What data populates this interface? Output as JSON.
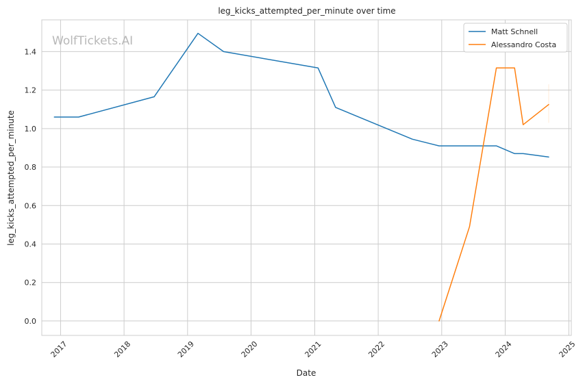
{
  "chart_data": {
    "type": "line",
    "title": "leg_kicks_attempted_per_minute over time",
    "xlabel": "Date",
    "ylabel": "leg_kicks_attempted_per_minute",
    "watermark": "WolfTickets.AI",
    "xlim": [
      "2016-09-15",
      "2025-01-15"
    ],
    "ylim": [
      -0.075,
      1.565
    ],
    "xticks": [
      "2017",
      "2018",
      "2019",
      "2020",
      "2021",
      "2022",
      "2023",
      "2024",
      "2025"
    ],
    "yticks": [
      "0.0",
      "0.2",
      "0.4",
      "0.6",
      "0.8",
      "1.0",
      "1.2",
      "1.4"
    ],
    "grid": true,
    "legend_position": "top-right",
    "series": [
      {
        "name": "Matt Schnell",
        "color": "#1f77b4",
        "points": [
          {
            "x": "2016-11-26",
            "y": 1.06
          },
          {
            "x": "2017-04-15",
            "y": 1.06
          },
          {
            "x": "2018-06-23",
            "y": 1.165
          },
          {
            "x": "2019-03-02",
            "y": 1.495
          },
          {
            "x": "2019-07-27",
            "y": 1.4
          },
          {
            "x": "2021-01-20",
            "y": 1.315
          },
          {
            "x": "2021-05-01",
            "y": 1.11
          },
          {
            "x": "2022-07-16",
            "y": 0.945
          },
          {
            "x": "2022-12-17",
            "y": 0.91
          },
          {
            "x": "2023-11-11",
            "y": 0.91
          },
          {
            "x": "2024-02-24",
            "y": 0.87
          },
          {
            "x": "2024-04-13",
            "y": 0.87
          },
          {
            "x": "2024-09-07",
            "y": 0.852
          }
        ]
      },
      {
        "name": "Alessandro Costa",
        "color": "#ff7f0e",
        "points": [
          {
            "x": "2022-12-17",
            "y": 0.0
          },
          {
            "x": "2023-06-10",
            "y": 0.49
          },
          {
            "x": "2023-11-11",
            "y": 1.315
          },
          {
            "x": "2024-02-24",
            "y": 1.315
          },
          {
            "x": "2024-04-13",
            "y": 1.02
          },
          {
            "x": "2024-09-07",
            "y": 1.125
          }
        ]
      }
    ]
  }
}
